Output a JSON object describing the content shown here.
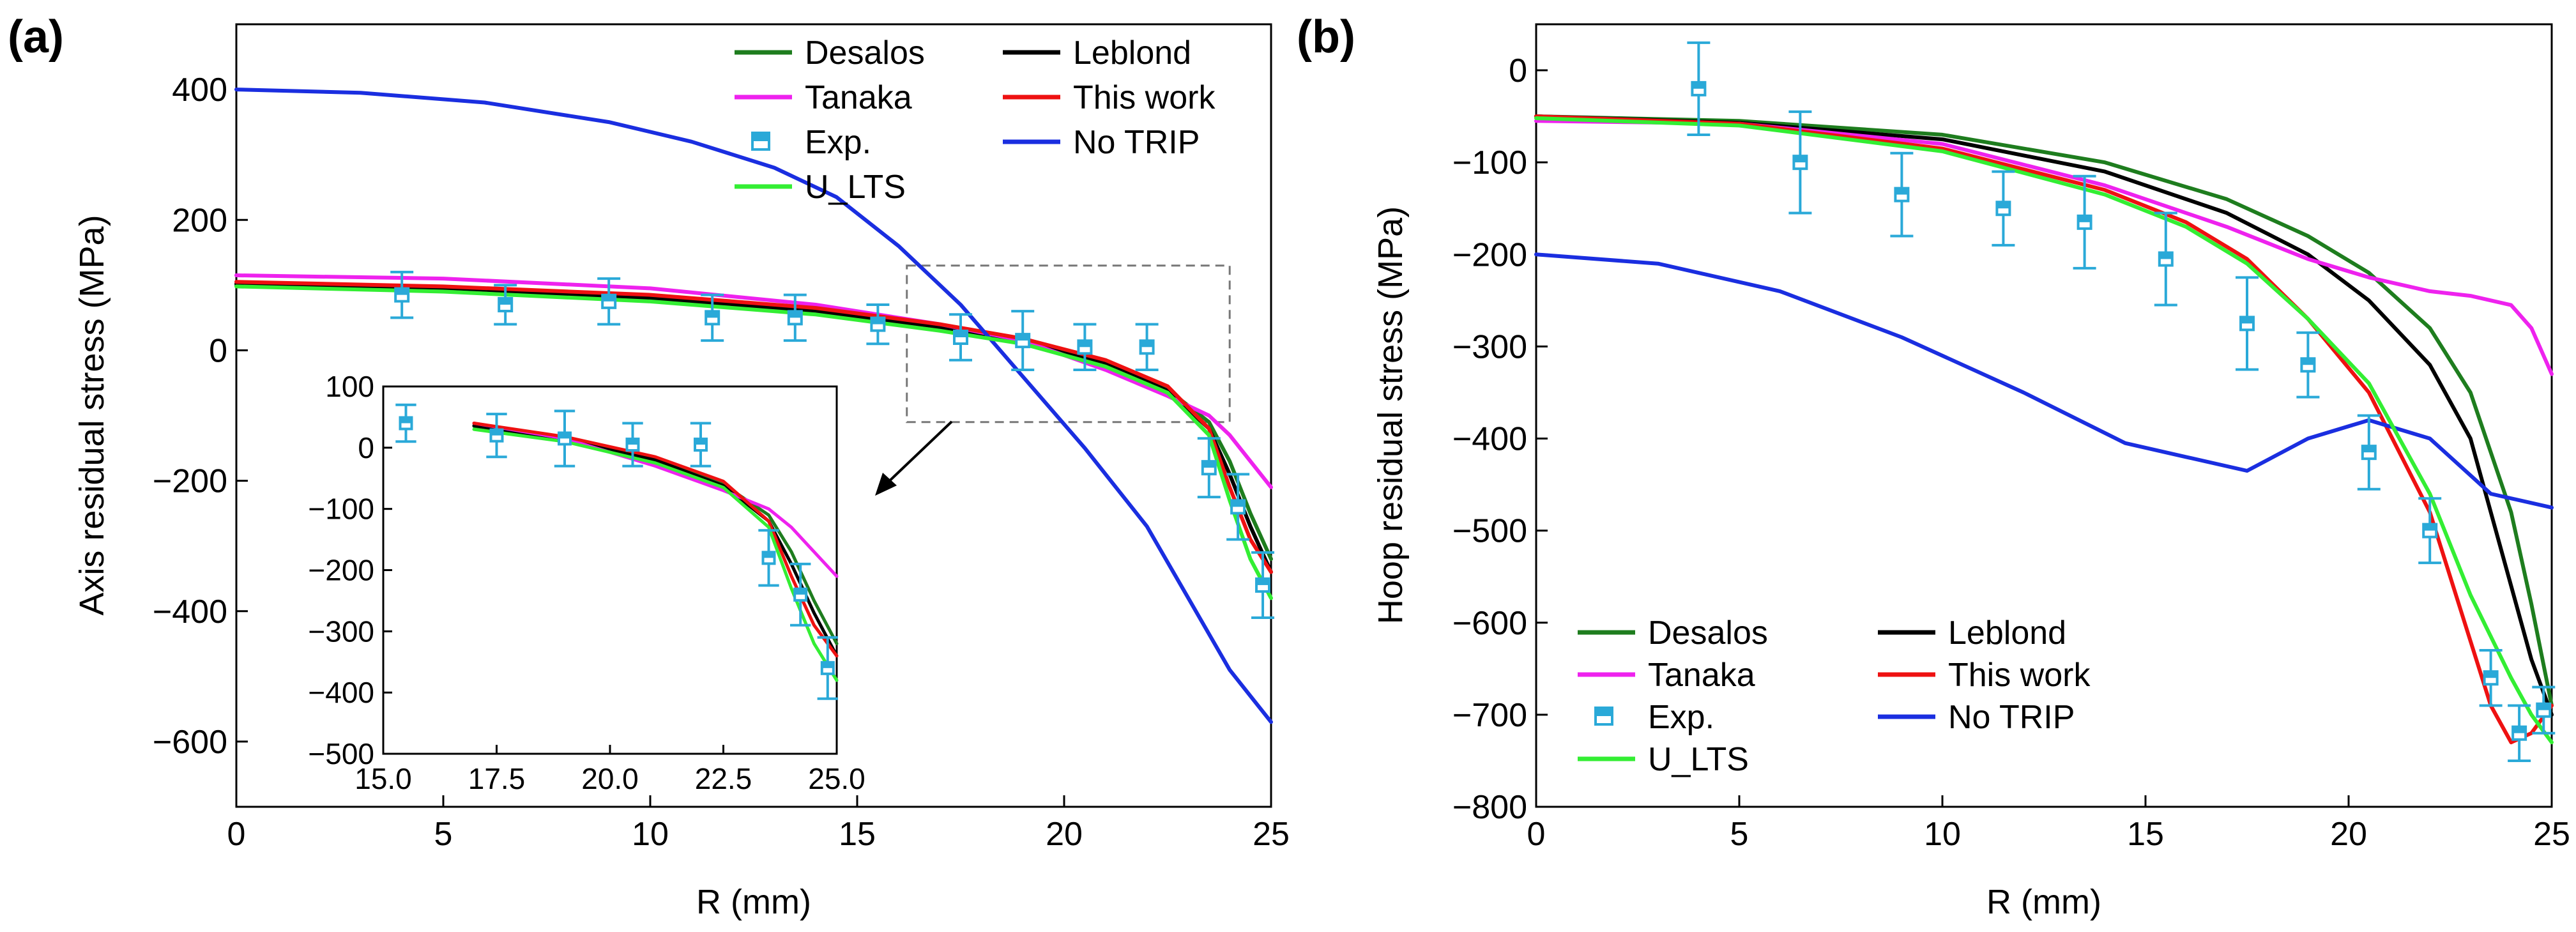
{
  "colors": {
    "Desalos": "#1e7d1e",
    "Leblond": "#000000",
    "Tanaka": "#ee22ee",
    "This work": "#ee1111",
    "No TRIP": "#1a2ee0",
    "U_LTS": "#33ee33",
    "Exp.": "#2aa9d8"
  },
  "chart_data": [
    {
      "panel_label": "(a)",
      "type": "line",
      "xlabel": "R (mm)",
      "ylabel": "Axis residual stress (MPa)",
      "xlim": [
        0,
        25
      ],
      "ylim": [
        -700,
        500
      ],
      "xticks": [
        "0",
        "5",
        "10",
        "15",
        "20",
        "25"
      ],
      "xtick_values": [
        0,
        5,
        10,
        15,
        20,
        25
      ],
      "yticks": [
        "400",
        "200",
        "0",
        "−200",
        "−400",
        "−600"
      ],
      "ytick_values": [
        400,
        200,
        0,
        -200,
        -400,
        -600
      ],
      "legend": [
        "Desalos",
        "Leblond",
        "Tanaka",
        "This work",
        "Exp.",
        "No TRIP",
        "U_LTS"
      ],
      "legend_location": "top-center",
      "series": [
        {
          "name": "Desalos",
          "x": [
            0,
            5,
            10,
            14,
            17,
            19,
            21,
            22.5,
            23.5,
            24,
            24.5,
            25
          ],
          "y": [
            100,
            95,
            80,
            60,
            35,
            15,
            -20,
            -60,
            -110,
            -170,
            -250,
            -320
          ]
        },
        {
          "name": "Leblond",
          "x": [
            0,
            5,
            10,
            14,
            17,
            19,
            21,
            22.5,
            23.5,
            24,
            24.5,
            25
          ],
          "y": [
            102,
            96,
            80,
            60,
            36,
            15,
            -20,
            -62,
            -120,
            -190,
            -270,
            -340
          ]
        },
        {
          "name": "Tanaka",
          "x": [
            0,
            5,
            10,
            14,
            17,
            19,
            21,
            22.5,
            23.5,
            24,
            24.5,
            25
          ],
          "y": [
            115,
            110,
            95,
            70,
            40,
            15,
            -30,
            -70,
            -100,
            -130,
            -170,
            -210
          ]
        },
        {
          "name": "This work",
          "x": [
            0,
            5,
            10,
            14,
            17,
            19,
            21,
            22.5,
            23.5,
            24,
            24.5,
            25
          ],
          "y": [
            105,
            98,
            85,
            65,
            40,
            18,
            -15,
            -55,
            -120,
            -210,
            -290,
            -340
          ]
        },
        {
          "name": "No TRIP",
          "x": [
            0,
            3,
            6,
            9,
            11,
            13,
            14.5,
            16,
            17.5,
            19,
            20.5,
            22,
            23,
            24,
            24.5,
            25
          ],
          "y": [
            400,
            395,
            380,
            350,
            320,
            280,
            235,
            160,
            70,
            -40,
            -150,
            -270,
            -380,
            -490,
            -530,
            -570
          ]
        },
        {
          "name": "U_LTS",
          "x": [
            0,
            5,
            10,
            14,
            17,
            19,
            21,
            22.5,
            23.5,
            24,
            24.5,
            25
          ],
          "y": [
            98,
            90,
            75,
            55,
            30,
            10,
            -25,
            -65,
            -130,
            -230,
            -320,
            -380
          ]
        }
      ],
      "experimental": {
        "name": "Exp.",
        "x": [
          4,
          6.5,
          9,
          11.5,
          13.5,
          15.5,
          17.5,
          19,
          20.5,
          22,
          23.5,
          24.2,
          24.8
        ],
        "y": [
          85,
          70,
          75,
          50,
          50,
          40,
          20,
          15,
          5,
          5,
          -180,
          -240,
          -360
        ],
        "err": [
          35,
          30,
          35,
          35,
          35,
          30,
          35,
          45,
          35,
          35,
          45,
          50,
          50
        ]
      },
      "inset": {
        "xlim": [
          15,
          25
        ],
        "ylim": [
          -500,
          100
        ],
        "xticks": [
          "15.0",
          "17.5",
          "20.0",
          "22.5",
          "25.0"
        ],
        "xtick_values": [
          15,
          17.5,
          20,
          22.5,
          25
        ],
        "yticks": [
          "100",
          "0",
          "−100",
          "−200",
          "−300",
          "−400",
          "−500"
        ],
        "ytick_values": [
          100,
          0,
          -100,
          -200,
          -300,
          -400,
          -500
        ],
        "zoom_box": {
          "x": [
            16.2,
            24.0
          ],
          "y": [
            -110,
            130
          ]
        }
      }
    },
    {
      "panel_label": "(b)",
      "type": "line",
      "xlabel": "R (mm)",
      "ylabel": "Hoop residual stress (MPa)",
      "xlim": [
        0,
        25
      ],
      "ylim": [
        -800,
        50
      ],
      "xticks": [
        "0",
        "5",
        "10",
        "15",
        "20",
        "25"
      ],
      "xtick_values": [
        0,
        5,
        10,
        15,
        20,
        25
      ],
      "yticks": [
        "0",
        "−100",
        "−200",
        "−300",
        "−400",
        "−500",
        "−600",
        "−700",
        "−800"
      ],
      "ytick_values": [
        0,
        -100,
        -200,
        -300,
        -400,
        -500,
        -600,
        -700,
        -800
      ],
      "legend": [
        "Desalos",
        "Leblond",
        "Tanaka",
        "This work",
        "Exp.",
        "No TRIP",
        "U_LTS"
      ],
      "legend_location": "bottom-left",
      "series": [
        {
          "name": "Desalos",
          "x": [
            0,
            5,
            10,
            14,
            17,
            19,
            20.5,
            22,
            23,
            24,
            24.5,
            25
          ],
          "y": [
            -50,
            -55,
            -70,
            -100,
            -140,
            -180,
            -220,
            -280,
            -350,
            -480,
            -580,
            -690
          ]
        },
        {
          "name": "Leblond",
          "x": [
            0,
            5,
            10,
            14,
            17,
            19,
            20.5,
            22,
            23,
            24,
            24.5,
            25
          ],
          "y": [
            -50,
            -57,
            -75,
            -110,
            -155,
            -200,
            -250,
            -320,
            -400,
            -560,
            -640,
            -700
          ]
        },
        {
          "name": "Tanaka",
          "x": [
            0,
            5,
            10,
            14,
            17,
            19,
            20.5,
            22,
            23,
            24,
            24.5,
            25
          ],
          "y": [
            -55,
            -58,
            -80,
            -125,
            -170,
            -205,
            -225,
            -240,
            -245,
            -255,
            -280,
            -330
          ]
        },
        {
          "name": "This work",
          "x": [
            0,
            5,
            10,
            14,
            16,
            17.5,
            19,
            20.5,
            22,
            23,
            23.5,
            24,
            24.5,
            25
          ],
          "y": [
            -50,
            -58,
            -85,
            -130,
            -165,
            -205,
            -270,
            -350,
            -480,
            -620,
            -690,
            -730,
            -720,
            -690
          ]
        },
        {
          "name": "No TRIP",
          "x": [
            0,
            3,
            6,
            9,
            12,
            14.5,
            16,
            17.5,
            19,
            20.5,
            22,
            23.5,
            25
          ],
          "y": [
            -200,
            -210,
            -240,
            -290,
            -350,
            -405,
            -420,
            -435,
            -400,
            -380,
            -400,
            -460,
            -475
          ]
        },
        {
          "name": "U_LTS",
          "x": [
            0,
            5,
            10,
            14,
            16,
            17.5,
            19,
            20.5,
            22,
            23,
            24,
            24.5,
            25
          ],
          "y": [
            -52,
            -60,
            -88,
            -135,
            -170,
            -210,
            -270,
            -340,
            -460,
            -570,
            -660,
            -700,
            -730
          ]
        }
      ],
      "experimental": {
        "name": "Exp.",
        "x": [
          4,
          6.5,
          9,
          11.5,
          13.5,
          15.5,
          17.5,
          19,
          20.5,
          22,
          23.5,
          24.2,
          24.8
        ],
        "y": [
          -20,
          -100,
          -135,
          -150,
          -165,
          -205,
          -275,
          -320,
          -415,
          -500,
          -660,
          -720,
          -695
        ],
        "err": [
          50,
          55,
          45,
          40,
          50,
          50,
          50,
          35,
          40,
          35,
          30,
          30,
          25
        ]
      }
    }
  ]
}
